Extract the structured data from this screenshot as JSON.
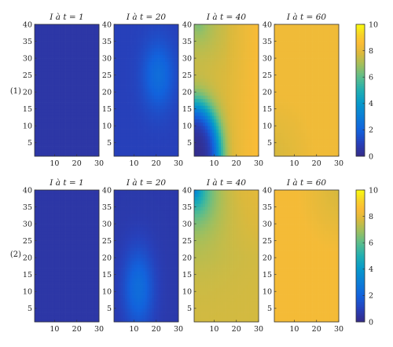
{
  "figure": {
    "row_labels": [
      "(1)",
      "(2)"
    ],
    "colorbar": {
      "ticks": [
        0,
        2,
        4,
        6,
        8,
        10
      ],
      "range": [
        0,
        10
      ],
      "colormap": "parula"
    },
    "axes": {
      "x_ticks": [
        10,
        20,
        30
      ],
      "y_ticks": [
        5,
        10,
        15,
        20,
        25,
        30,
        35,
        40
      ],
      "xlim": [
        1,
        30
      ],
      "ylim": [
        1,
        40
      ]
    }
  },
  "chart_data": [
    {
      "type": "heatmap",
      "row_label": "(1)",
      "panels": [
        {
          "title": "I à t = 1",
          "model": "flat",
          "base": 0.6,
          "peak": 0.8
        },
        {
          "title": "I à t = 20",
          "model": "blob",
          "base": 1.0,
          "peak": 2.4,
          "center": [
            21,
            25
          ],
          "spread": [
            7,
            10
          ]
        },
        {
          "title": "I à t = 40",
          "model": "front",
          "base": 0.1,
          "peak": 8.0,
          "origin": [
            1,
            1
          ],
          "radius": 15,
          "width": 6
        },
        {
          "title": "I à t = 60",
          "model": "plateau",
          "base": 7.7,
          "peak": 8.3,
          "low_corner": [
            1,
            1
          ]
        }
      ]
    },
    {
      "type": "heatmap",
      "row_label": "(2)",
      "panels": [
        {
          "title": "I à t = 1",
          "model": "flat",
          "base": 0.6,
          "peak": 0.6
        },
        {
          "title": "I à t = 20",
          "model": "blob",
          "base": 0.7,
          "peak": 2.4,
          "center": [
            12,
            11
          ],
          "spread": [
            7,
            12
          ]
        },
        {
          "title": "I à t = 40",
          "model": "corner",
          "base": 7.7,
          "peak": 2.8,
          "origin": [
            1,
            40
          ],
          "radius": 8
        },
        {
          "title": "I à t = 60",
          "model": "plateau",
          "base": 7.7,
          "peak": 8.4,
          "low_corner": [
            30,
            40
          ]
        }
      ]
    }
  ]
}
